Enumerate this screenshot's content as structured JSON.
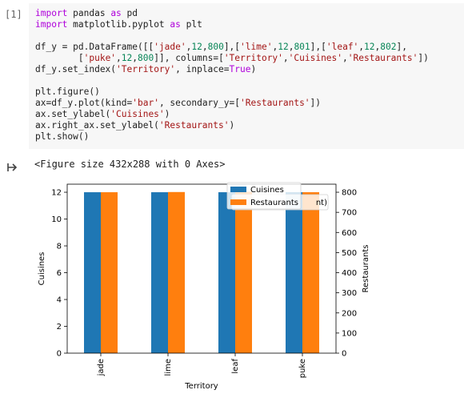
{
  "cell": {
    "prompt": "[1]",
    "code_lines": [
      [
        {
          "t": "import",
          "c": "kw"
        },
        {
          "t": " pandas "
        },
        {
          "t": "as",
          "c": "kw"
        },
        {
          "t": " pd"
        }
      ],
      [
        {
          "t": "import",
          "c": "kw"
        },
        {
          "t": " matplotlib.pyplot "
        },
        {
          "t": "as",
          "c": "kw"
        },
        {
          "t": " plt"
        }
      ],
      [
        {
          "t": ""
        }
      ],
      [
        {
          "t": "df_y = pd.DataFrame([["
        },
        {
          "t": "'jade'",
          "c": "str"
        },
        {
          "t": ","
        },
        {
          "t": "12",
          "c": "num"
        },
        {
          "t": ","
        },
        {
          "t": "800",
          "c": "num"
        },
        {
          "t": "],["
        },
        {
          "t": "'lime'",
          "c": "str"
        },
        {
          "t": ","
        },
        {
          "t": "12",
          "c": "num"
        },
        {
          "t": ","
        },
        {
          "t": "801",
          "c": "num"
        },
        {
          "t": "],["
        },
        {
          "t": "'leaf'",
          "c": "str"
        },
        {
          "t": ","
        },
        {
          "t": "12",
          "c": "num"
        },
        {
          "t": ","
        },
        {
          "t": "802",
          "c": "num"
        },
        {
          "t": "],"
        }
      ],
      [
        {
          "t": "        ["
        },
        {
          "t": "'puke'",
          "c": "str"
        },
        {
          "t": ","
        },
        {
          "t": "12",
          "c": "num"
        },
        {
          "t": ","
        },
        {
          "t": "800",
          "c": "num"
        },
        {
          "t": "]], columns=["
        },
        {
          "t": "'Territory'",
          "c": "str"
        },
        {
          "t": ","
        },
        {
          "t": "'Cuisines'",
          "c": "str"
        },
        {
          "t": ","
        },
        {
          "t": "'Restaurants'",
          "c": "str"
        },
        {
          "t": "])"
        }
      ],
      [
        {
          "t": "df_y.set_index("
        },
        {
          "t": "'Territory'",
          "c": "str"
        },
        {
          "t": ", inplace="
        },
        {
          "t": "True",
          "c": "kw"
        },
        {
          "t": ")"
        }
      ],
      [
        {
          "t": ""
        }
      ],
      [
        {
          "t": "plt.figure()"
        }
      ],
      [
        {
          "t": "ax=df_y.plot(kind="
        },
        {
          "t": "'bar'",
          "c": "str"
        },
        {
          "t": ", secondary_y=["
        },
        {
          "t": "'Restaurants'",
          "c": "str"
        },
        {
          "t": "])"
        }
      ],
      [
        {
          "t": "ax.set_ylabel("
        },
        {
          "t": "'Cuisines'",
          "c": "str"
        },
        {
          "t": ")"
        }
      ],
      [
        {
          "t": "ax.right_ax.set_ylabel("
        },
        {
          "t": "'Restaurants'",
          "c": "str"
        },
        {
          "t": ")"
        }
      ],
      [
        {
          "t": "plt.show()"
        }
      ]
    ]
  },
  "output": {
    "icon": "output-arrow-icon",
    "text": "<Figure size 432x288 with 0 Axes>"
  },
  "chart_data": {
    "type": "bar",
    "categories": [
      "jade",
      "lime",
      "leaf",
      "puke"
    ],
    "series": [
      {
        "name": "Cuisines",
        "values": [
          12,
          12,
          12,
          12
        ],
        "color": "#1f77b4",
        "axis": "left"
      },
      {
        "name": "Restaurants",
        "values": [
          800,
          801,
          802,
          800
        ],
        "color": "#ff7f0e",
        "axis": "right"
      }
    ],
    "legend_labels": [
      "Cuisines",
      "Restaurants",
      "nt)"
    ],
    "xlabel": "Territory",
    "ylabel": "Cuisines",
    "ylabel_right": "Restaurants",
    "ylim": [
      0,
      12.6
    ],
    "ylim_right": [
      0,
      840
    ],
    "yticks": [
      0,
      2,
      4,
      6,
      8,
      10,
      12
    ],
    "yticks_right": [
      0,
      100,
      200,
      300,
      400,
      500,
      600,
      700,
      800
    ],
    "legend_position": "top-right"
  }
}
